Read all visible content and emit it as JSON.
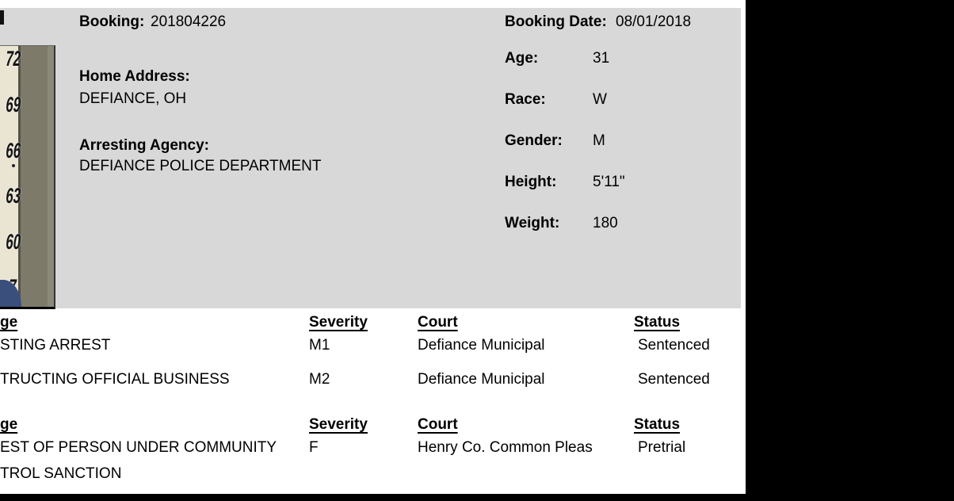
{
  "colors": {
    "panel_gray": "#d8d8d8",
    "sidebar_black": "#000000",
    "chart_cream": "#eae5d3",
    "wall_olive": "#7e7a6a",
    "clothing_navy": "#3b4f7c"
  },
  "photo": {
    "height_marks": [
      "72",
      "69",
      "66",
      "63",
      "60",
      "7"
    ]
  },
  "booking_panel": {
    "booking_label": "Booking:",
    "booking_number": "201804226",
    "booking_date_label": "Booking Date:",
    "booking_date_value": "08/01/2018",
    "home_address_label": "Home Address:",
    "home_address_value": "DEFIANCE, OH",
    "arresting_agency_label": "Arresting Agency:",
    "arresting_agency_value": "DEFIANCE POLICE DEPARTMENT",
    "demographics": [
      {
        "label": "Age:",
        "value": "31"
      },
      {
        "label": "Race:",
        "value": "W"
      },
      {
        "label": "Gender:",
        "value": "M"
      },
      {
        "label": "Height:",
        "value": "5'11\""
      },
      {
        "label": "Weight:",
        "value": "180"
      }
    ]
  },
  "charges": {
    "groups": [
      {
        "headers": {
          "charge": "ge",
          "severity": "Severity",
          "court": "Court",
          "status": "Status"
        },
        "rows": [
          {
            "charge_line1": "STING ARREST",
            "charge_line2": "",
            "severity": "M1",
            "court": "Defiance Municipal",
            "status": "Sentenced"
          },
          {
            "charge_line1": "TRUCTING OFFICIAL BUSINESS",
            "charge_line2": "",
            "severity": "M2",
            "court": "Defiance Municipal",
            "status": "Sentenced"
          }
        ]
      },
      {
        "headers": {
          "charge": "ge",
          "severity": "Severity",
          "court": "Court",
          "status": "Status"
        },
        "rows": [
          {
            "charge_line1": "EST OF PERSON UNDER COMMUNITY",
            "charge_line2": "TROL SANCTION",
            "severity": "F",
            "court": "Henry Co. Common Pleas",
            "status": "Pretrial"
          }
        ]
      }
    ]
  }
}
